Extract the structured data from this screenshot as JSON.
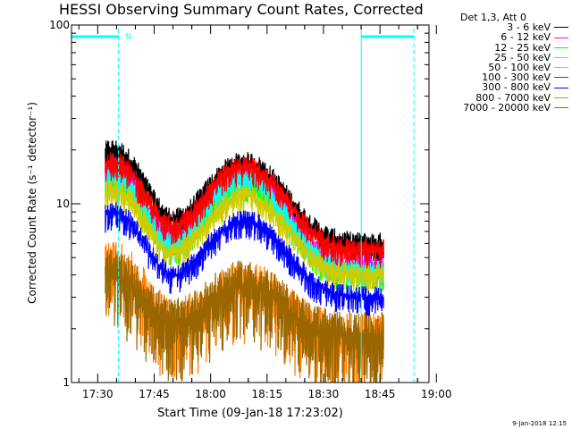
{
  "chart_data": {
    "type": "line",
    "title": "HESSI Observing Summary Count Rates, Corrected",
    "xlabel": "Start Time (09-Jan-18 17:23:02)",
    "ylabel": "Corrected Count Rate (s⁻¹ detector⁻¹)",
    "y_scale": "log",
    "ylim": [
      1,
      100
    ],
    "xlim_minutes": [
      0,
      95
    ],
    "x_ticks": [
      "17:30",
      "17:45",
      "18:00",
      "18:15",
      "18:30",
      "18:45",
      "19:00"
    ],
    "y_ticks": [
      "1",
      "10",
      "100"
    ],
    "legend_title": "Det 1,3, Att 0",
    "series": [
      {
        "name": "3 - 6 keV",
        "color": "#000000",
        "peak1": 20,
        "peak2": 17,
        "base": 6.0
      },
      {
        "name": "6 - 12 keV",
        "color": "#ff00ff",
        "peak1": 16,
        "peak2": 15,
        "base": 4.5
      },
      {
        "name": "12 - 25 keV",
        "color": "#00ff00",
        "peak1": 14,
        "peak2": 13,
        "base": 4.0
      },
      {
        "name": "25 - 50 keV",
        "color": "#00ffff",
        "peak1": 14,
        "peak2": 14,
        "base": 4.2
      },
      {
        "name": "50 - 100 keV",
        "color": "#cccc00",
        "peak1": 12,
        "peak2": 11,
        "base": 4.0
      },
      {
        "name": "100 - 300 keV",
        "color": "#ff0000",
        "peak1": 17,
        "peak2": 16,
        "base": 5.5
      },
      {
        "name": "300 - 800 keV",
        "color": "#0000ff",
        "peak1": 9,
        "peak2": 8,
        "base": 3.0
      },
      {
        "name": "800 - 7000 keV",
        "color": "#ff8000",
        "peak1": 4.5,
        "peak2": 3.5,
        "base": 1.8
      },
      {
        "name": "7000 - 20000 keV",
        "color": "#996600",
        "peak1": 4,
        "peak2": 3.5,
        "base": 1.8
      }
    ],
    "annotations": [
      {
        "text": "N",
        "color": "#00ffff"
      }
    ],
    "data_span_minutes": [
      9,
      83
    ]
  },
  "footer": {
    "timestamp": "9-Jan-2018 12:15"
  }
}
